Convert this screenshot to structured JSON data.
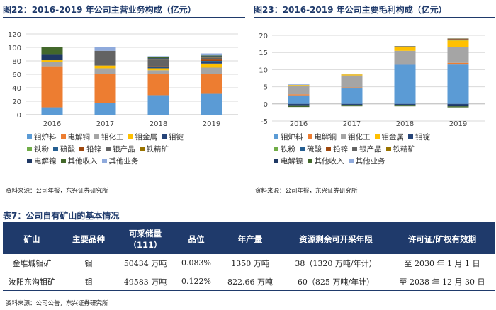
{
  "fig22": {
    "title": "图22：2016-2019 年公司主营业务构成（亿元）",
    "source": "资料来源：公司年报，东兴证券研究所"
  },
  "fig23": {
    "title": "图23：2016-2019 年公司主要毛利构成（亿元）",
    "source": "资料来源：公司年报，东兴证券研究所"
  },
  "legend": [
    [
      {
        "label": "钼炉料",
        "color": "#5b9bd5"
      },
      {
        "label": "电解铜",
        "color": "#ed7d31"
      },
      {
        "label": "钼化工",
        "color": "#a5a5a5"
      },
      {
        "label": "钼金属",
        "color": "#ffc000"
      },
      {
        "label": "钼锭",
        "color": "#264478"
      }
    ],
    [
      {
        "label": "铁粉",
        "color": "#70ad47"
      },
      {
        "label": "硫酸",
        "color": "#255e91"
      },
      {
        "label": "铅锌",
        "color": "#9e480e"
      },
      {
        "label": "银产品",
        "color": "#636363"
      },
      {
        "label": "铁精矿",
        "color": "#997300"
      }
    ],
    [
      {
        "label": "电解镍",
        "color": "#1f3864"
      },
      {
        "label": "其他收入",
        "color": "#43682b"
      },
      {
        "label": "其他业务",
        "color": "#8faadc"
      }
    ]
  ],
  "chart_data": [
    {
      "type": "bar",
      "stacked": true,
      "title": "图22：2016-2019 年公司主营业务构成（亿元）",
      "categories": [
        "2016",
        "2017",
        "2018",
        "2019"
      ],
      "ylim": [
        0,
        120
      ],
      "yticks": [
        0,
        20,
        40,
        60,
        80,
        100,
        120
      ],
      "series": [
        {
          "name": "钼炉料",
          "values": [
            11,
            17,
            29,
            31
          ]
        },
        {
          "name": "电解铜",
          "values": [
            61,
            44,
            31,
            30
          ]
        },
        {
          "name": "钼化工",
          "values": [
            6,
            8,
            6,
            9
          ]
        },
        {
          "name": "钼金属",
          "values": [
            3,
            4,
            3,
            6
          ]
        },
        {
          "name": "钼锭",
          "values": [
            0,
            0,
            1,
            2
          ]
        },
        {
          "name": "铁粉",
          "values": [
            0,
            0,
            0,
            1
          ]
        },
        {
          "name": "硫酸",
          "values": [
            0,
            0,
            1,
            1
          ]
        },
        {
          "name": "铅锌",
          "values": [
            0,
            0,
            1,
            2
          ]
        },
        {
          "name": "银产品",
          "values": [
            0,
            22,
            10,
            3
          ]
        },
        {
          "name": "铁精矿",
          "values": [
            0,
            0,
            1,
            1
          ]
        },
        {
          "name": "电解镍",
          "values": [
            8,
            0,
            1,
            1
          ]
        },
        {
          "name": "其他收入",
          "values": [
            11,
            0,
            2,
            1
          ]
        },
        {
          "name": "其他业务",
          "values": [
            0,
            6,
            1,
            3
          ]
        }
      ]
    },
    {
      "type": "bar",
      "stacked": true,
      "title": "图23：2016-2019 年公司主要毛利构成（亿元）",
      "categories": [
        "2016",
        "2017",
        "2018",
        "2019"
      ],
      "ylim": [
        -5,
        20
      ],
      "yticks": [
        -5,
        0,
        5,
        10,
        15,
        20
      ],
      "series": [
        {
          "name": "钼炉料",
          "values": [
            2.5,
            4.5,
            11.5,
            11.5
          ]
        },
        {
          "name": "电解铜",
          "values": [
            0.3,
            0.3,
            0.2,
            0.5
          ]
        },
        {
          "name": "钼化工",
          "values": [
            2.5,
            3.5,
            3.8,
            4.5
          ]
        },
        {
          "name": "钼金属",
          "values": [
            0.2,
            0.3,
            1,
            2
          ]
        },
        {
          "name": "钼锭",
          "values": [
            -0.3,
            -0.3,
            -0.3,
            -0.4
          ]
        },
        {
          "name": "铁粉",
          "values": [
            0,
            0,
            0,
            0.1
          ]
        },
        {
          "name": "硫酸",
          "values": [
            0,
            0,
            0,
            0.1
          ]
        },
        {
          "name": "铅锌",
          "values": [
            0,
            0,
            0.1,
            0.2
          ]
        },
        {
          "name": "银产品",
          "values": [
            0,
            0,
            0,
            0.1
          ]
        },
        {
          "name": "铁精矿",
          "values": [
            0,
            0,
            0.2,
            0.1
          ]
        },
        {
          "name": "电解镍",
          "values": [
            -0.3,
            -0.2,
            -0.2,
            -0.3
          ]
        },
        {
          "name": "其他收入",
          "values": [
            -0.3,
            -0.2,
            -0.2,
            -0.3
          ]
        },
        {
          "name": "其他业务",
          "values": [
            0.2,
            0.1,
            0.1,
            0.2
          ]
        }
      ]
    }
  ],
  "table7": {
    "title": "表7：公司自有矿山的基本情况",
    "headers": [
      "矿山",
      "主要品种",
      "可采储量（111）",
      "品位",
      "年产量",
      "资源剩余可开采年限",
      "许可证/矿权有效期"
    ],
    "rows": [
      [
        "金堆城钼矿",
        "钼",
        "50434 万吨",
        "0.083%",
        "1350 万吨",
        "38（1320 万吨/年计）",
        "至 2030 年 1 月 1 日"
      ],
      [
        "汝阳东沟钼矿",
        "钼",
        "49583 万吨",
        "0.122%",
        "822.66 万吨",
        "60（825 万吨/年计）",
        "至 2038 年 12 月 30 日"
      ]
    ],
    "source": "资料来源：公司公告，东兴证券研究所"
  }
}
